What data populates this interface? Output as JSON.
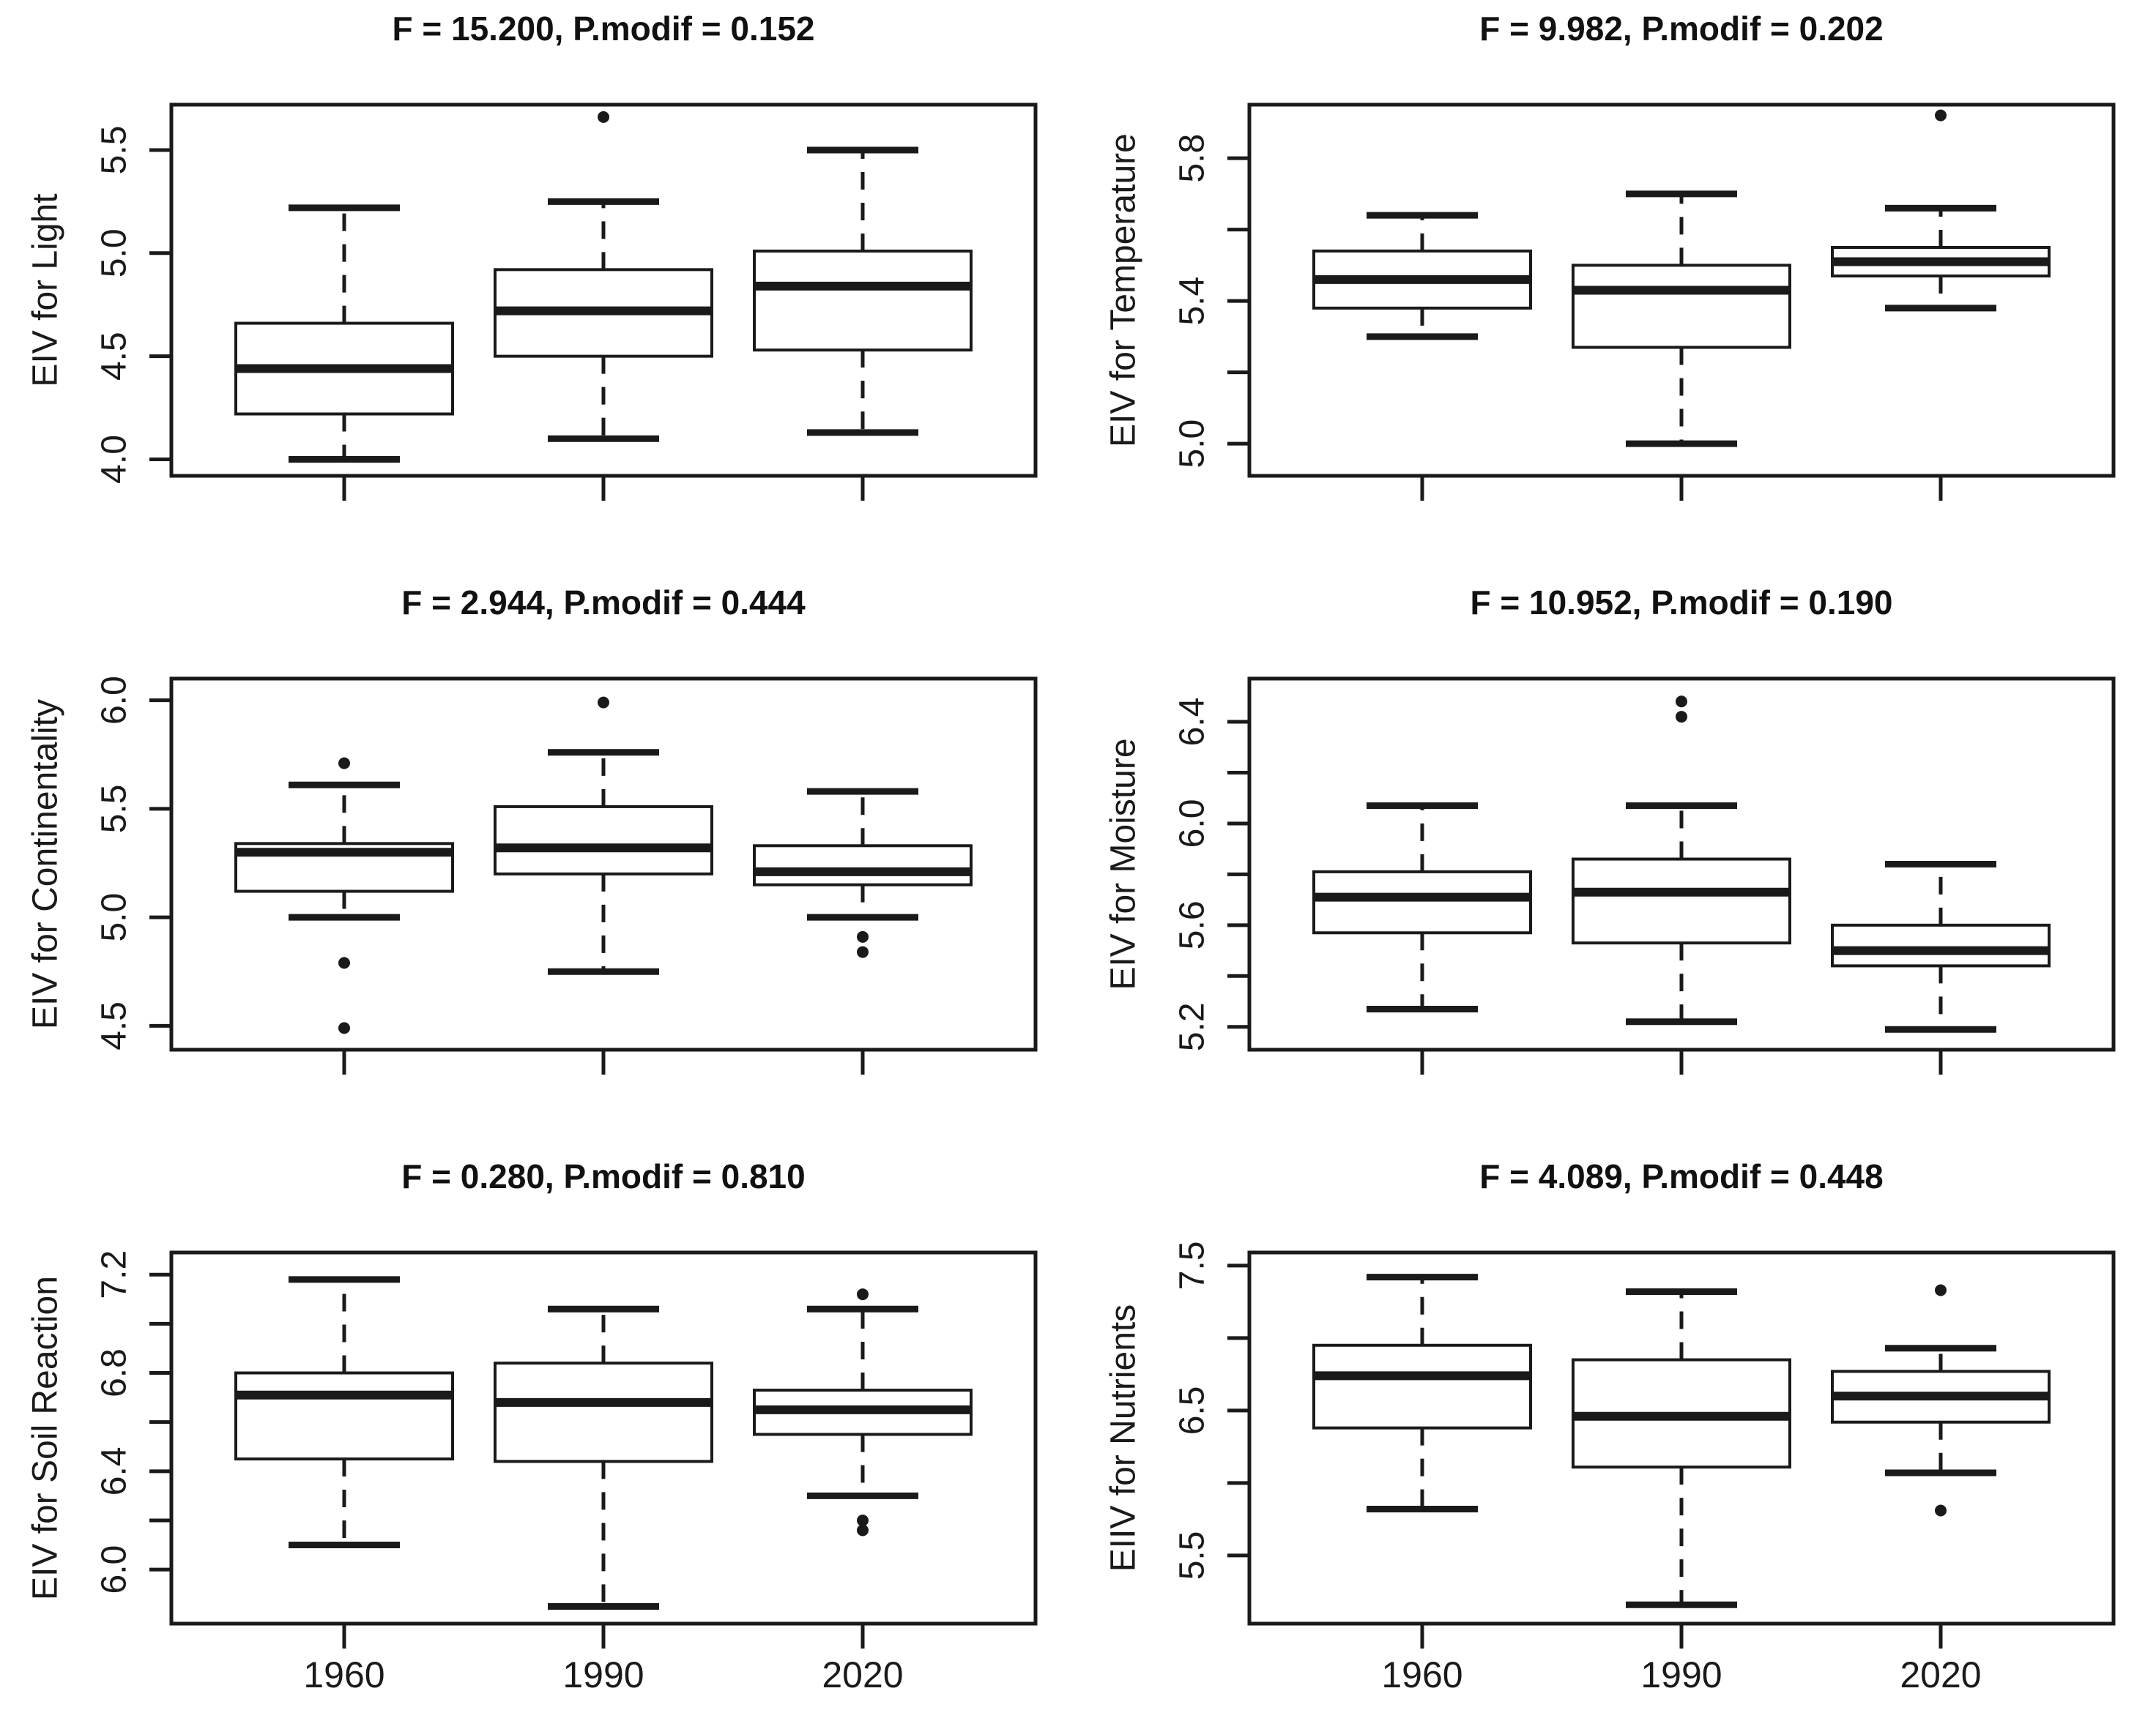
{
  "figure": {
    "background": "#ffffff",
    "ink_color": "#1a1a1a",
    "x_axis_labels": [
      "1960",
      "1990",
      "2020"
    ]
  },
  "chart_data": [
    {
      "type": "boxplot",
      "title": "F = 15.200, P.modif = 0.152",
      "ylabel": "EIV for Light",
      "ylim": [
        3.92,
        5.72
      ],
      "yticks": [
        {
          "v": 4.0,
          "t": "4.0"
        },
        {
          "v": 4.5,
          "t": "4.5"
        },
        {
          "v": 5.0,
          "t": "5.0"
        },
        {
          "v": 5.5,
          "t": "5.5"
        }
      ],
      "yticks_minor": [],
      "categories": [
        "1960",
        "1990",
        "2020"
      ],
      "show_x_labels": false,
      "grid": false,
      "boxes": [
        {
          "category": "1960",
          "low": 4.0,
          "q1": 4.22,
          "median": 4.44,
          "q3": 4.66,
          "high": 5.22,
          "outliers": []
        },
        {
          "category": "1990",
          "low": 4.1,
          "q1": 4.5,
          "median": 4.72,
          "q3": 4.92,
          "high": 5.25,
          "outliers": [
            5.66
          ]
        },
        {
          "category": "2020",
          "low": 4.13,
          "q1": 4.53,
          "median": 4.84,
          "q3": 5.01,
          "high": 5.5,
          "outliers": []
        }
      ]
    },
    {
      "type": "boxplot",
      "title": "F = 9.982, P.modif = 0.202",
      "ylabel": "EIV for Temperature",
      "ylim": [
        4.91,
        5.95
      ],
      "yticks": [
        {
          "v": 5.0,
          "t": "5.0"
        },
        {
          "v": 5.4,
          "t": "5.4"
        },
        {
          "v": 5.8,
          "t": "5.8"
        }
      ],
      "yticks_minor": [
        5.2,
        5.6
      ],
      "categories": [
        "1960",
        "1990",
        "2020"
      ],
      "show_x_labels": false,
      "grid": false,
      "boxes": [
        {
          "category": "1960",
          "low": 5.3,
          "q1": 5.38,
          "median": 5.46,
          "q3": 5.54,
          "high": 5.64,
          "outliers": []
        },
        {
          "category": "1990",
          "low": 5.0,
          "q1": 5.27,
          "median": 5.43,
          "q3": 5.5,
          "high": 5.7,
          "outliers": []
        },
        {
          "category": "2020",
          "low": 5.38,
          "q1": 5.47,
          "median": 5.51,
          "q3": 5.55,
          "high": 5.66,
          "outliers": [
            5.92
          ]
        }
      ]
    },
    {
      "type": "boxplot",
      "title": "F = 2.944, P.modif = 0.444",
      "ylabel": "EIV for Continentality",
      "ylim": [
        4.39,
        6.1
      ],
      "yticks": [
        {
          "v": 4.5,
          "t": "4.5"
        },
        {
          "v": 5.0,
          "t": "5.0"
        },
        {
          "v": 5.5,
          "t": "5.5"
        },
        {
          "v": 6.0,
          "t": "6.0"
        }
      ],
      "yticks_minor": [],
      "categories": [
        "1960",
        "1990",
        "2020"
      ],
      "show_x_labels": false,
      "grid": false,
      "boxes": [
        {
          "category": "1960",
          "low": 5.0,
          "q1": 5.12,
          "median": 5.3,
          "q3": 5.34,
          "high": 5.61,
          "outliers": [
            5.71,
            4.79,
            4.49
          ]
        },
        {
          "category": "1990",
          "low": 4.75,
          "q1": 5.2,
          "median": 5.32,
          "q3": 5.51,
          "high": 5.76,
          "outliers": [
            5.99
          ]
        },
        {
          "category": "2020",
          "low": 5.0,
          "q1": 5.15,
          "median": 5.21,
          "q3": 5.33,
          "high": 5.58,
          "outliers": [
            4.91,
            4.84
          ]
        }
      ]
    },
    {
      "type": "boxplot",
      "title": "F = 10.952, P.modif = 0.190",
      "ylabel": "EIV for Moisture",
      "ylim": [
        5.11,
        6.57
      ],
      "yticks": [
        {
          "v": 5.2,
          "t": "5.2"
        },
        {
          "v": 5.6,
          "t": "5.6"
        },
        {
          "v": 6.0,
          "t": "6.0"
        },
        {
          "v": 6.4,
          "t": "6.4"
        }
      ],
      "yticks_minor": [
        5.4,
        5.8,
        6.2
      ],
      "categories": [
        "1960",
        "1990",
        "2020"
      ],
      "show_x_labels": false,
      "grid": false,
      "boxes": [
        {
          "category": "1960",
          "low": 5.27,
          "q1": 5.57,
          "median": 5.71,
          "q3": 5.81,
          "high": 6.07,
          "outliers": []
        },
        {
          "category": "1990",
          "low": 5.22,
          "q1": 5.53,
          "median": 5.73,
          "q3": 5.86,
          "high": 6.07,
          "outliers": [
            6.48,
            6.42
          ]
        },
        {
          "category": "2020",
          "low": 5.19,
          "q1": 5.44,
          "median": 5.5,
          "q3": 5.6,
          "high": 5.84,
          "outliers": []
        }
      ]
    },
    {
      "type": "boxplot",
      "title": "F = 0.280, P.modif = 0.810",
      "ylabel": "EIV for Soil Reaction",
      "ylim": [
        5.78,
        7.29
      ],
      "yticks": [
        {
          "v": 6.0,
          "t": "6.0"
        },
        {
          "v": 6.4,
          "t": "6.4"
        },
        {
          "v": 6.8,
          "t": "6.8"
        },
        {
          "v": 7.2,
          "t": "7.2"
        }
      ],
      "yticks_minor": [
        6.2,
        6.6,
        7.0
      ],
      "categories": [
        "1960",
        "1990",
        "2020"
      ],
      "show_x_labels": true,
      "grid": false,
      "boxes": [
        {
          "category": "1960",
          "low": 6.1,
          "q1": 6.45,
          "median": 6.71,
          "q3": 6.8,
          "high": 7.18,
          "outliers": []
        },
        {
          "category": "1990",
          "low": 5.85,
          "q1": 6.44,
          "median": 6.68,
          "q3": 6.84,
          "high": 7.06,
          "outliers": []
        },
        {
          "category": "2020",
          "low": 6.3,
          "q1": 6.55,
          "median": 6.65,
          "q3": 6.73,
          "high": 7.06,
          "outliers": [
            7.12,
            6.2,
            6.16
          ]
        }
      ]
    },
    {
      "type": "boxplot",
      "title": "F = 4.089, P.modif = 0.448",
      "ylabel": "EIIV for Nutrients",
      "ylim": [
        5.03,
        7.59
      ],
      "yticks": [
        {
          "v": 5.5,
          "t": "5.5"
        },
        {
          "v": 6.5,
          "t": "6.5"
        },
        {
          "v": 7.5,
          "t": "7.5"
        }
      ],
      "yticks_minor": [
        6.0,
        7.0
      ],
      "categories": [
        "1960",
        "1990",
        "2020"
      ],
      "show_x_labels": true,
      "grid": false,
      "boxes": [
        {
          "category": "1960",
          "low": 5.82,
          "q1": 6.38,
          "median": 6.74,
          "q3": 6.95,
          "high": 7.42,
          "outliers": []
        },
        {
          "category": "1990",
          "low": 5.16,
          "q1": 6.11,
          "median": 6.46,
          "q3": 6.85,
          "high": 7.32,
          "outliers": []
        },
        {
          "category": "2020",
          "low": 6.07,
          "q1": 6.42,
          "median": 6.6,
          "q3": 6.77,
          "high": 6.93,
          "outliers": [
            7.33,
            5.81
          ]
        }
      ]
    }
  ]
}
